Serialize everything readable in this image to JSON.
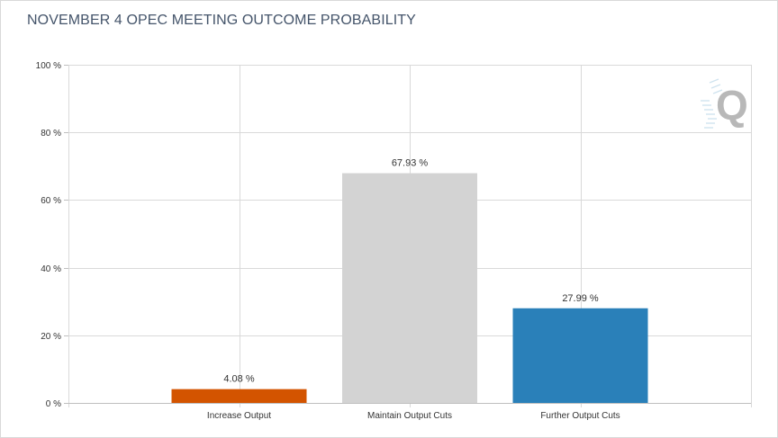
{
  "chart_data": {
    "type": "bar",
    "title": "NOVEMBER 4 OPEC MEETING OUTCOME PROBABILITY",
    "categories": [
      "Increase Output",
      "Maintain Output Cuts",
      "Further Output Cuts"
    ],
    "values": [
      4.08,
      67.93,
      27.99
    ],
    "data_labels": [
      "4.08 %",
      "67.93 %",
      "27.99 %"
    ],
    "colors": [
      "#d35400",
      "#d3d3d3",
      "#2a80b9"
    ],
    "ylim": [
      0,
      100
    ],
    "y_ticks": [
      0,
      20,
      40,
      60,
      80,
      100
    ],
    "y_tick_labels": [
      "0 %",
      "20 %",
      "40 %",
      "60 %",
      "80 %",
      "100 %"
    ],
    "xlabel": "",
    "ylabel": "",
    "grid": true,
    "legend": "none"
  },
  "watermark_icon": "q-logo-icon",
  "grid_color": "#d9d9d9"
}
